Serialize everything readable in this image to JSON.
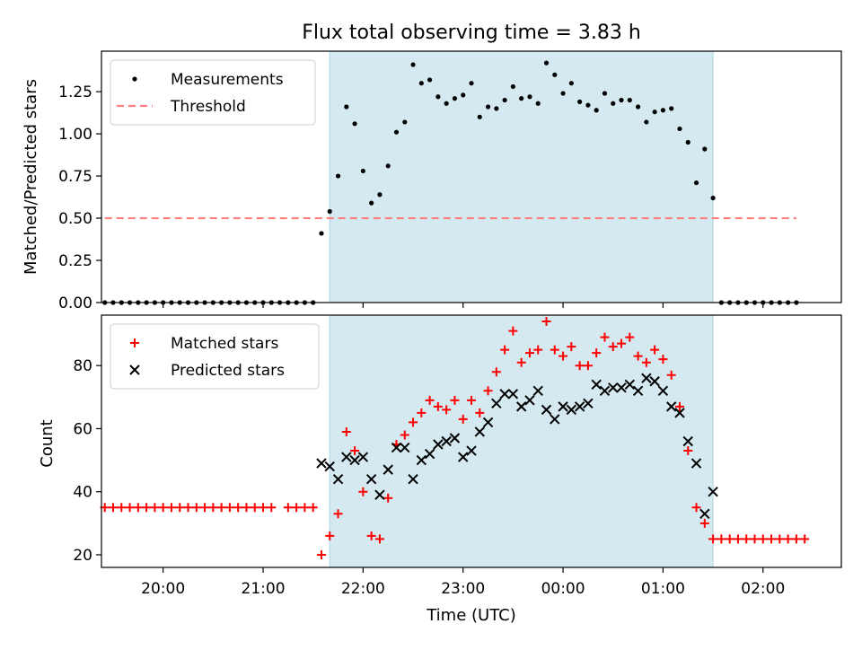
{
  "chart_data": [
    {
      "type": "scatter",
      "title": "Flux total observing time = 3.83 h",
      "xlabel": "",
      "ylabel": "Matched/Predicted stars",
      "xlim": [
        "19:23",
        "02:47"
      ],
      "ylim": [
        0,
        1.49
      ],
      "yticks": [
        "0.00",
        "0.25",
        "0.50",
        "0.75",
        "1.00",
        "1.25"
      ],
      "legend_location": "top-left",
      "shaded_span": [
        "21:40",
        "01:30"
      ],
      "shade_color": "#d4eaf0",
      "series": [
        {
          "name": "Measurements",
          "color": "#000000",
          "marker": "dot",
          "points": [
            [
              "19:25",
              0
            ],
            [
              "19:30",
              0
            ],
            [
              "19:35",
              0
            ],
            [
              "19:40",
              0
            ],
            [
              "19:45",
              0
            ],
            [
              "19:50",
              0
            ],
            [
              "19:55",
              0
            ],
            [
              "20:00",
              0
            ],
            [
              "20:05",
              0
            ],
            [
              "20:10",
              0
            ],
            [
              "20:15",
              0
            ],
            [
              "20:20",
              0
            ],
            [
              "20:25",
              0
            ],
            [
              "20:30",
              0
            ],
            [
              "20:35",
              0
            ],
            [
              "20:40",
              0
            ],
            [
              "20:45",
              0
            ],
            [
              "20:50",
              0
            ],
            [
              "20:55",
              0
            ],
            [
              "21:00",
              0
            ],
            [
              "21:05",
              0
            ],
            [
              "21:10",
              0
            ],
            [
              "21:15",
              0
            ],
            [
              "21:20",
              0
            ],
            [
              "21:25",
              0
            ],
            [
              "21:30",
              0
            ],
            [
              "21:35",
              0.41
            ],
            [
              "21:40",
              0.54
            ],
            [
              "21:45",
              0.75
            ],
            [
              "21:50",
              1.16
            ],
            [
              "21:55",
              1.06
            ],
            [
              "22:00",
              0.78
            ],
            [
              "22:05",
              0.59
            ],
            [
              "22:10",
              0.64
            ],
            [
              "22:15",
              0.81
            ],
            [
              "22:20",
              1.01
            ],
            [
              "22:25",
              1.07
            ],
            [
              "22:30",
              1.41
            ],
            [
              "22:35",
              1.3
            ],
            [
              "22:40",
              1.32
            ],
            [
              "22:45",
              1.22
            ],
            [
              "22:50",
              1.18
            ],
            [
              "22:55",
              1.21
            ],
            [
              "23:00",
              1.23
            ],
            [
              "23:05",
              1.3
            ],
            [
              "23:10",
              1.1
            ],
            [
              "23:15",
              1.16
            ],
            [
              "23:20",
              1.15
            ],
            [
              "23:25",
              1.2
            ],
            [
              "23:30",
              1.28
            ],
            [
              "23:35",
              1.21
            ],
            [
              "23:40",
              1.22
            ],
            [
              "23:45",
              1.18
            ],
            [
              "23:50",
              1.42
            ],
            [
              "23:55",
              1.35
            ],
            [
              "00:00",
              1.24
            ],
            [
              "00:05",
              1.3
            ],
            [
              "00:10",
              1.19
            ],
            [
              "00:15",
              1.17
            ],
            [
              "00:20",
              1.14
            ],
            [
              "00:25",
              1.24
            ],
            [
              "00:30",
              1.18
            ],
            [
              "00:35",
              1.2
            ],
            [
              "00:40",
              1.2
            ],
            [
              "00:45",
              1.16
            ],
            [
              "00:50",
              1.07
            ],
            [
              "00:55",
              1.13
            ],
            [
              "01:00",
              1.14
            ],
            [
              "01:05",
              1.15
            ],
            [
              "01:10",
              1.03
            ],
            [
              "01:15",
              0.95
            ],
            [
              "01:20",
              0.71
            ],
            [
              "01:25",
              0.91
            ],
            [
              "01:30",
              0.62
            ],
            [
              "01:35",
              0
            ],
            [
              "01:40",
              0
            ],
            [
              "01:45",
              0
            ],
            [
              "01:50",
              0
            ],
            [
              "01:55",
              0
            ],
            [
              "02:00",
              0
            ],
            [
              "02:05",
              0
            ],
            [
              "02:10",
              0
            ],
            [
              "02:15",
              0
            ],
            [
              "02:20",
              0
            ]
          ]
        },
        {
          "name": "Threshold",
          "color": "#ff7f7f",
          "marker": "dashed-line",
          "points": [
            [
              "19:25",
              0.5
            ],
            [
              "02:20",
              0.5
            ]
          ]
        }
      ]
    },
    {
      "type": "scatter",
      "title": "",
      "xlabel": "Time (UTC)",
      "ylabel": "Count",
      "xlim": [
        "19:23",
        "02:47"
      ],
      "ylim": [
        16,
        96
      ],
      "yticks": [
        "20",
        "40",
        "60",
        "80"
      ],
      "xticks": [
        "20:00",
        "21:00",
        "22:00",
        "23:00",
        "00:00",
        "01:00",
        "02:00"
      ],
      "legend_location": "top-left",
      "shaded_span": [
        "21:40",
        "01:30"
      ],
      "shade_color": "#d4eaf0",
      "series": [
        {
          "name": "Matched stars",
          "color": "#ff0000",
          "marker": "plus",
          "points": [
            [
              "19:25",
              35
            ],
            [
              "19:30",
              35
            ],
            [
              "19:35",
              35
            ],
            [
              "19:40",
              35
            ],
            [
              "19:45",
              35
            ],
            [
              "19:50",
              35
            ],
            [
              "19:55",
              35
            ],
            [
              "20:00",
              35
            ],
            [
              "20:05",
              35
            ],
            [
              "20:10",
              35
            ],
            [
              "20:15",
              35
            ],
            [
              "20:20",
              35
            ],
            [
              "20:25",
              35
            ],
            [
              "20:30",
              35
            ],
            [
              "20:35",
              35
            ],
            [
              "20:40",
              35
            ],
            [
              "20:45",
              35
            ],
            [
              "20:50",
              35
            ],
            [
              "20:55",
              35
            ],
            [
              "21:00",
              35
            ],
            [
              "21:05",
              35
            ],
            [
              "21:15",
              35
            ],
            [
              "21:20",
              35
            ],
            [
              "21:25",
              35
            ],
            [
              "21:30",
              35
            ],
            [
              "21:35",
              20
            ],
            [
              "21:40",
              26
            ],
            [
              "21:45",
              33
            ],
            [
              "21:50",
              59
            ],
            [
              "21:55",
              53
            ],
            [
              "22:00",
              40
            ],
            [
              "22:05",
              26
            ],
            [
              "22:10",
              25
            ],
            [
              "22:15",
              38
            ],
            [
              "22:20",
              55
            ],
            [
              "22:25",
              58
            ],
            [
              "22:30",
              62
            ],
            [
              "22:35",
              65
            ],
            [
              "22:40",
              69
            ],
            [
              "22:45",
              67
            ],
            [
              "22:50",
              66
            ],
            [
              "22:55",
              69
            ],
            [
              "23:00",
              63
            ],
            [
              "23:05",
              69
            ],
            [
              "23:10",
              65
            ],
            [
              "23:15",
              72
            ],
            [
              "23:20",
              78
            ],
            [
              "23:25",
              85
            ],
            [
              "23:30",
              91
            ],
            [
              "23:35",
              81
            ],
            [
              "23:40",
              84
            ],
            [
              "23:45",
              85
            ],
            [
              "23:50",
              94
            ],
            [
              "23:55",
              85
            ],
            [
              "00:00",
              83
            ],
            [
              "00:05",
              86
            ],
            [
              "00:10",
              80
            ],
            [
              "00:15",
              80
            ],
            [
              "00:20",
              84
            ],
            [
              "00:25",
              89
            ],
            [
              "00:30",
              86
            ],
            [
              "00:35",
              87
            ],
            [
              "00:40",
              89
            ],
            [
              "00:45",
              83
            ],
            [
              "00:50",
              81
            ],
            [
              "00:55",
              85
            ],
            [
              "01:00",
              82
            ],
            [
              "01:05",
              77
            ],
            [
              "01:10",
              67
            ],
            [
              "01:15",
              53
            ],
            [
              "01:20",
              35
            ],
            [
              "01:25",
              30
            ],
            [
              "01:30",
              25
            ],
            [
              "01:35",
              25
            ],
            [
              "01:40",
              25
            ],
            [
              "01:45",
              25
            ],
            [
              "01:50",
              25
            ],
            [
              "01:55",
              25
            ],
            [
              "02:00",
              25
            ],
            [
              "02:05",
              25
            ],
            [
              "02:10",
              25
            ],
            [
              "02:15",
              25
            ],
            [
              "02:20",
              25
            ],
            [
              "02:25",
              25
            ]
          ]
        },
        {
          "name": "Predicted stars",
          "color": "#000000",
          "marker": "cross",
          "points": [
            [
              "21:35",
              49
            ],
            [
              "21:40",
              48
            ],
            [
              "21:45",
              44
            ],
            [
              "21:50",
              51
            ],
            [
              "21:55",
              50
            ],
            [
              "22:00",
              51
            ],
            [
              "22:05",
              44
            ],
            [
              "22:10",
              39
            ],
            [
              "22:15",
              47
            ],
            [
              "22:20",
              54
            ],
            [
              "22:25",
              54
            ],
            [
              "22:30",
              44
            ],
            [
              "22:35",
              50
            ],
            [
              "22:40",
              52
            ],
            [
              "22:45",
              55
            ],
            [
              "22:50",
              56
            ],
            [
              "22:55",
              57
            ],
            [
              "23:00",
              51
            ],
            [
              "23:05",
              53
            ],
            [
              "23:10",
              59
            ],
            [
              "23:15",
              62
            ],
            [
              "23:20",
              68
            ],
            [
              "23:25",
              71
            ],
            [
              "23:30",
              71
            ],
            [
              "23:35",
              67
            ],
            [
              "23:40",
              69
            ],
            [
              "23:45",
              72
            ],
            [
              "23:50",
              66
            ],
            [
              "23:55",
              63
            ],
            [
              "00:00",
              67
            ],
            [
              "00:05",
              66
            ],
            [
              "00:10",
              67
            ],
            [
              "00:15",
              68
            ],
            [
              "00:20",
              74
            ],
            [
              "00:25",
              72
            ],
            [
              "00:30",
              73
            ],
            [
              "00:35",
              73
            ],
            [
              "00:40",
              74
            ],
            [
              "00:45",
              72
            ],
            [
              "00:50",
              76
            ],
            [
              "00:55",
              75
            ],
            [
              "01:00",
              72
            ],
            [
              "01:05",
              67
            ],
            [
              "01:10",
              65
            ],
            [
              "01:15",
              56
            ],
            [
              "01:20",
              49
            ],
            [
              "01:25",
              33
            ],
            [
              "01:30",
              40
            ]
          ]
        }
      ]
    }
  ]
}
